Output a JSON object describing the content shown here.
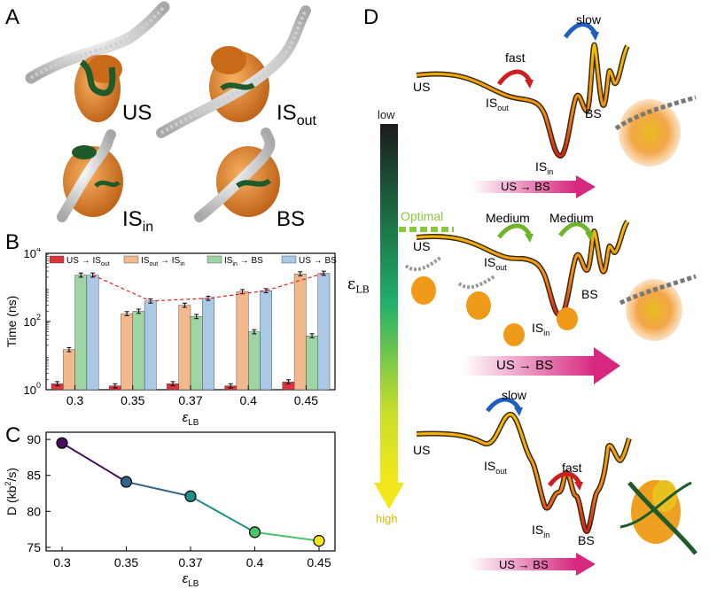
{
  "panels": {
    "A": "A",
    "B": "B",
    "C": "C",
    "D": "D"
  },
  "panel_a": {
    "labels": [
      {
        "main": "US",
        "sub": ""
      },
      {
        "main": "IS",
        "sub": "out"
      },
      {
        "main": "IS",
        "sub": "in"
      },
      {
        "main": "BS",
        "sub": ""
      }
    ]
  },
  "panel_d": {
    "arrow_low": "low",
    "arrow_high": "high",
    "arrow_symbol": "ε",
    "arrow_sub": "LB",
    "optimal": "Optimal",
    "flow_label": "US → BS",
    "rows": [
      {
        "barrier1": "fast",
        "barrier2": "slow",
        "us": "US",
        "isout": "IS",
        "isout_sub": "out",
        "isin": "IS",
        "isin_sub": "in",
        "bs": "BS"
      },
      {
        "barrier1": "Medium",
        "barrier2": "Medium",
        "us": "US",
        "isout": "IS",
        "isout_sub": "out",
        "isin": "IS",
        "isin_sub": "in",
        "bs": "BS"
      },
      {
        "barrier1": "slow",
        "barrier2": "fast",
        "us": "US",
        "isout": "IS",
        "isout_sub": "out",
        "isin": "IS",
        "isin_sub": "in",
        "bs": "BS"
      }
    ],
    "colors": {
      "slow_arrow": "#1f5fbf",
      "fast_arrow": "#cc1f1f",
      "medium_arrow": "#6fb52c",
      "optimal": "#8cc63f",
      "flow": "#d6287f"
    }
  },
  "chart_data": [
    {
      "type": "bar",
      "panel": "B",
      "ylabel": "Time (ns)",
      "xlabel": "ε",
      "xlabel_sub": "LB",
      "yscale": "log",
      "ylim": [
        1,
        10000
      ],
      "ytick_labels": [
        {
          "base": "10",
          "exp": "0"
        },
        {
          "base": "10",
          "exp": "2"
        },
        {
          "base": "10",
          "exp": "4"
        }
      ],
      "categories": [
        "0.3",
        "0.35",
        "0.37",
        "0.4",
        "0.45"
      ],
      "series": [
        {
          "name": "US → IS",
          "name_sub": "out",
          "color": "#d9343f",
          "values": [
            1.5,
            1.3,
            1.5,
            1.3,
            1.7
          ]
        },
        {
          "name": "IS",
          "name_sub": "out",
          "name_tail": " → IS",
          "name_tail_sub": "in",
          "color": "#f2b98c",
          "values": [
            15,
            170,
            300,
            750,
            2500
          ]
        },
        {
          "name": "IS",
          "name_sub": "in",
          "name_tail": " → BS",
          "name_tail_sub": "",
          "color": "#9fd4a4",
          "values": [
            2300,
            200,
            140,
            50,
            38
          ]
        },
        {
          "name": "US → BS",
          "name_sub": "",
          "color": "#a9c9e6",
          "values": [
            2300,
            400,
            480,
            800,
            2600
          ]
        }
      ],
      "trend_line": {
        "color": "#e02020",
        "style": "dashed"
      }
    },
    {
      "type": "line",
      "panel": "C",
      "ylabel": "D (kb",
      "ylabel_sup": "2",
      "ylabel_tail": "/s)",
      "xlabel": "ε",
      "xlabel_sub": "LB",
      "categories": [
        "0.3",
        "0.35",
        "0.37",
        "0.4",
        "0.45"
      ],
      "values": [
        89.5,
        84.1,
        82.1,
        77.1,
        75.9
      ],
      "ylim": [
        74.5,
        91
      ],
      "yticks": [
        "75",
        "80",
        "85",
        "90"
      ],
      "point_colors": [
        "#46105e",
        "#33648c",
        "#1f8f8a",
        "#4cc26a",
        "#f0e51f"
      ]
    }
  ]
}
